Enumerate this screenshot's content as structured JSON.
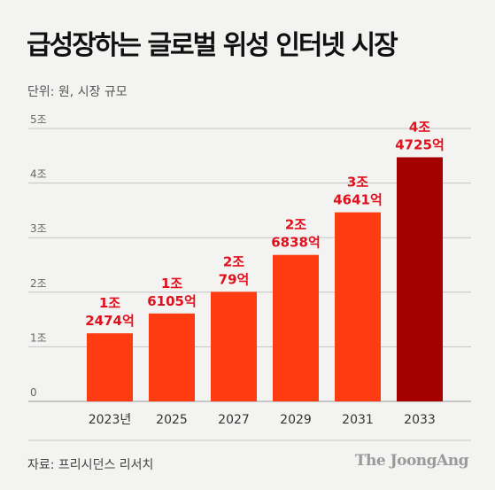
{
  "title": "급성장하는 글로벌 위성 인터넷 시장",
  "unit_note": "단위: 원, 시장 규모",
  "source": "자료: 프리시던스 리서치",
  "logo": "The JoongAng",
  "colors": {
    "bar": "#ff3b12",
    "bar_highlight": "#a50000",
    "label": "#e0101d",
    "grid": "#c4c4c4",
    "axis_text": "#666666"
  },
  "chart_data": {
    "type": "bar",
    "title": "급성장하는 글로벌 위성 인터넷 시장",
    "ylabel": "단위: 원, 시장 규모",
    "xlabel": "",
    "categories": [
      "2023년",
      "2025",
      "2027",
      "2029",
      "2031",
      "2033"
    ],
    "values": [
      12474,
      16105,
      20079,
      26838,
      34641,
      44725
    ],
    "value_unit": "억원",
    "data_labels": [
      [
        "1조",
        "2474억"
      ],
      [
        "1조",
        "6105억"
      ],
      [
        "2조",
        "79억"
      ],
      [
        "2조",
        "6838억"
      ],
      [
        "3조",
        "4641억"
      ],
      [
        "4조",
        "4725억"
      ]
    ],
    "highlight_index": 5,
    "ylim": [
      0,
      50000
    ],
    "yticks": [
      0,
      10000,
      20000,
      30000,
      40000,
      50000
    ],
    "ytick_labels": [
      "0",
      "1조",
      "2조",
      "3조",
      "4조",
      "5조"
    ],
    "grid": true,
    "legend": "none"
  }
}
